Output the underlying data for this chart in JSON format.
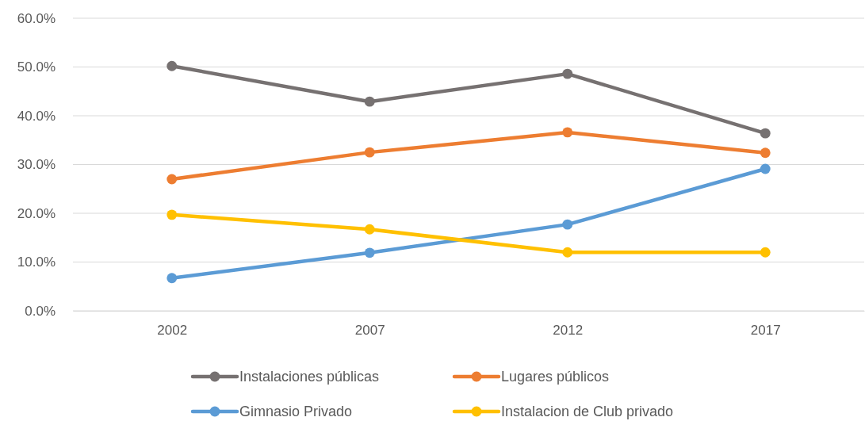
{
  "chart_data": {
    "type": "line",
    "categories": [
      "2002",
      "2007",
      "2012",
      "2017"
    ],
    "series": [
      {
        "name": "Instalaciones públicas",
        "color": "#767171",
        "values": [
          50.2,
          42.9,
          48.6,
          36.4
        ]
      },
      {
        "name": "Lugares públicos",
        "color": "#ed7d31",
        "values": [
          27.0,
          32.5,
          36.6,
          32.4
        ]
      },
      {
        "name": "Gimnasio Privado",
        "color": "#5b9bd5",
        "values": [
          6.7,
          11.9,
          17.7,
          29.1
        ]
      },
      {
        "name": "Instalacion de Club privado",
        "color": "#ffc000",
        "values": [
          19.7,
          16.7,
          12.0,
          12.0
        ]
      }
    ],
    "ylim": [
      0,
      60
    ],
    "yticks": [
      {
        "value": 0,
        "label": "0.0%"
      },
      {
        "value": 10,
        "label": "10.0%"
      },
      {
        "value": 20,
        "label": "20.0%"
      },
      {
        "value": 30,
        "label": "30.0%"
      },
      {
        "value": 40,
        "label": "40.0%"
      },
      {
        "value": 50,
        "label": "50.0%"
      },
      {
        "value": 60,
        "label": "60.0%"
      }
    ],
    "grid": "y",
    "legend": "bottom",
    "marker": "circle",
    "line_style": "solid"
  }
}
